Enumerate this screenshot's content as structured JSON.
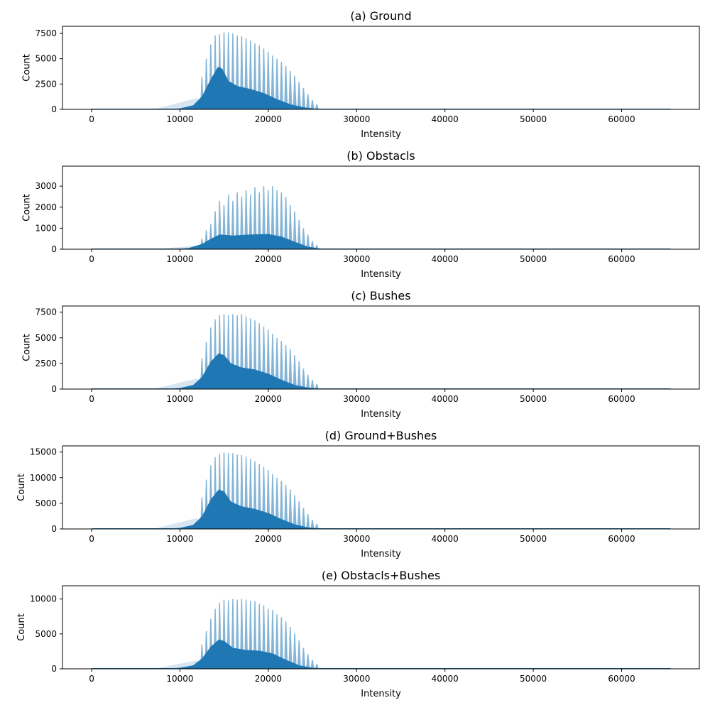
{
  "chart_data": [
    {
      "type": "bar",
      "title": "(a) Ground",
      "xlabel": "Intensity",
      "ylabel": "Count",
      "xlim": [
        -3300,
        68800
      ],
      "ylim": [
        0,
        8200
      ],
      "xticks": [
        0,
        10000,
        20000,
        30000,
        40000,
        50000,
        60000
      ],
      "xtick_labels": [
        "0",
        "10000",
        "20000",
        "30000",
        "40000",
        "50000",
        "60000"
      ],
      "yticks": [
        0,
        2500,
        5000,
        7500
      ],
      "ytick_labels": [
        "0",
        "2500",
        "5000",
        "7500"
      ],
      "color": "#1f77b4",
      "spike_peaks": [
        {
          "x": 12500,
          "y": 3200
        },
        {
          "x": 13000,
          "y": 5000
        },
        {
          "x": 13500,
          "y": 6400
        },
        {
          "x": 14000,
          "y": 7300
        },
        {
          "x": 14500,
          "y": 7400
        },
        {
          "x": 15000,
          "y": 7600
        },
        {
          "x": 15500,
          "y": 7600
        },
        {
          "x": 16000,
          "y": 7500
        },
        {
          "x": 16500,
          "y": 7300
        },
        {
          "x": 17000,
          "y": 7200
        },
        {
          "x": 17500,
          "y": 7000
        },
        {
          "x": 18000,
          "y": 6800
        },
        {
          "x": 18500,
          "y": 6500
        },
        {
          "x": 19000,
          "y": 6300
        },
        {
          "x": 19500,
          "y": 6000
        },
        {
          "x": 20000,
          "y": 5700
        },
        {
          "x": 20500,
          "y": 5300
        },
        {
          "x": 21000,
          "y": 5000
        },
        {
          "x": 21500,
          "y": 4700
        },
        {
          "x": 22000,
          "y": 4300
        },
        {
          "x": 22500,
          "y": 3800
        },
        {
          "x": 23000,
          "y": 3300
        },
        {
          "x": 23500,
          "y": 2700
        },
        {
          "x": 24000,
          "y": 2100
        },
        {
          "x": 24500,
          "y": 1500
        },
        {
          "x": 25000,
          "y": 900
        },
        {
          "x": 25500,
          "y": 500
        }
      ],
      "envelope": [
        {
          "x": 8000,
          "y": 0
        },
        {
          "x": 10000,
          "y": 100
        },
        {
          "x": 11500,
          "y": 400
        },
        {
          "x": 12500,
          "y": 1300
        },
        {
          "x": 13500,
          "y": 3000
        },
        {
          "x": 14300,
          "y": 4200
        },
        {
          "x": 14800,
          "y": 4000
        },
        {
          "x": 15500,
          "y": 2800
        },
        {
          "x": 16500,
          "y": 2300
        },
        {
          "x": 18000,
          "y": 2000
        },
        {
          "x": 19500,
          "y": 1600
        },
        {
          "x": 21000,
          "y": 1000
        },
        {
          "x": 22500,
          "y": 500
        },
        {
          "x": 24000,
          "y": 200
        },
        {
          "x": 25500,
          "y": 50
        },
        {
          "x": 27000,
          "y": 0
        }
      ]
    },
    {
      "type": "bar",
      "title": "(b) Obstacls",
      "xlabel": "Intensity",
      "ylabel": "Count",
      "xlim": [
        -3300,
        68800
      ],
      "ylim": [
        0,
        3950
      ],
      "xticks": [
        0,
        10000,
        20000,
        30000,
        40000,
        50000,
        60000
      ],
      "xtick_labels": [
        "0",
        "10000",
        "20000",
        "30000",
        "40000",
        "50000",
        "60000"
      ],
      "yticks": [
        0,
        1000,
        2000,
        3000
      ],
      "ytick_labels": [
        "0",
        "1000",
        "2000",
        "3000"
      ],
      "color": "#1f77b4",
      "spike_peaks": [
        {
          "x": 12500,
          "y": 500
        },
        {
          "x": 13000,
          "y": 900
        },
        {
          "x": 13500,
          "y": 1200
        },
        {
          "x": 14000,
          "y": 1800
        },
        {
          "x": 14500,
          "y": 2300
        },
        {
          "x": 15000,
          "y": 2100
        },
        {
          "x": 15500,
          "y": 2600
        },
        {
          "x": 16000,
          "y": 2300
        },
        {
          "x": 16500,
          "y": 2700
        },
        {
          "x": 17000,
          "y": 2500
        },
        {
          "x": 17500,
          "y": 2800
        },
        {
          "x": 18000,
          "y": 2600
        },
        {
          "x": 18500,
          "y": 2950
        },
        {
          "x": 19000,
          "y": 2700
        },
        {
          "x": 19500,
          "y": 3000
        },
        {
          "x": 20000,
          "y": 2800
        },
        {
          "x": 20500,
          "y": 3000
        },
        {
          "x": 21000,
          "y": 2800
        },
        {
          "x": 21500,
          "y": 2700
        },
        {
          "x": 22000,
          "y": 2500
        },
        {
          "x": 22500,
          "y": 2100
        },
        {
          "x": 23000,
          "y": 1800
        },
        {
          "x": 23500,
          "y": 1400
        },
        {
          "x": 24000,
          "y": 1000
        },
        {
          "x": 24500,
          "y": 700
        },
        {
          "x": 25000,
          "y": 400
        },
        {
          "x": 25500,
          "y": 200
        }
      ],
      "envelope": [
        {
          "x": 9000,
          "y": 0
        },
        {
          "x": 11000,
          "y": 60
        },
        {
          "x": 12500,
          "y": 250
        },
        {
          "x": 13500,
          "y": 500
        },
        {
          "x": 14500,
          "y": 700
        },
        {
          "x": 16000,
          "y": 650
        },
        {
          "x": 18000,
          "y": 700
        },
        {
          "x": 20000,
          "y": 720
        },
        {
          "x": 21500,
          "y": 600
        },
        {
          "x": 23000,
          "y": 350
        },
        {
          "x": 24500,
          "y": 120
        },
        {
          "x": 26500,
          "y": 0
        }
      ]
    },
    {
      "type": "bar",
      "title": "(c) Bushes",
      "xlabel": "Intensity",
      "ylabel": "Count",
      "xlim": [
        -3300,
        68800
      ],
      "ylim": [
        0,
        8100
      ],
      "xticks": [
        0,
        10000,
        20000,
        30000,
        40000,
        50000,
        60000
      ],
      "xtick_labels": [
        "0",
        "10000",
        "20000",
        "30000",
        "40000",
        "50000",
        "60000"
      ],
      "yticks": [
        0,
        2500,
        5000,
        7500
      ],
      "ytick_labels": [
        "0",
        "2500",
        "5000",
        "7500"
      ],
      "color": "#1f77b4",
      "spike_peaks": [
        {
          "x": 12500,
          "y": 3000
        },
        {
          "x": 13000,
          "y": 4600
        },
        {
          "x": 13500,
          "y": 6000
        },
        {
          "x": 14000,
          "y": 6800
        },
        {
          "x": 14500,
          "y": 7200
        },
        {
          "x": 15000,
          "y": 7300
        },
        {
          "x": 15500,
          "y": 7200
        },
        {
          "x": 16000,
          "y": 7300
        },
        {
          "x": 16500,
          "y": 7200
        },
        {
          "x": 17000,
          "y": 7300
        },
        {
          "x": 17500,
          "y": 7100
        },
        {
          "x": 18000,
          "y": 6900
        },
        {
          "x": 18500,
          "y": 6700
        },
        {
          "x": 19000,
          "y": 6400
        },
        {
          "x": 19500,
          "y": 6100
        },
        {
          "x": 20000,
          "y": 5800
        },
        {
          "x": 20500,
          "y": 5400
        },
        {
          "x": 21000,
          "y": 5000
        },
        {
          "x": 21500,
          "y": 4700
        },
        {
          "x": 22000,
          "y": 4300
        },
        {
          "x": 22500,
          "y": 3900
        },
        {
          "x": 23000,
          "y": 3300
        },
        {
          "x": 23500,
          "y": 2700
        },
        {
          "x": 24000,
          "y": 2000
        },
        {
          "x": 24500,
          "y": 1400
        },
        {
          "x": 25000,
          "y": 900
        },
        {
          "x": 25500,
          "y": 500
        }
      ],
      "envelope": [
        {
          "x": 8000,
          "y": 0
        },
        {
          "x": 10000,
          "y": 100
        },
        {
          "x": 11500,
          "y": 400
        },
        {
          "x": 12500,
          "y": 1200
        },
        {
          "x": 13500,
          "y": 2700
        },
        {
          "x": 14400,
          "y": 3500
        },
        {
          "x": 15000,
          "y": 3300
        },
        {
          "x": 15800,
          "y": 2500
        },
        {
          "x": 17000,
          "y": 2100
        },
        {
          "x": 18500,
          "y": 1900
        },
        {
          "x": 20000,
          "y": 1500
        },
        {
          "x": 21500,
          "y": 900
        },
        {
          "x": 23000,
          "y": 400
        },
        {
          "x": 24500,
          "y": 150
        },
        {
          "x": 26500,
          "y": 0
        }
      ]
    },
    {
      "type": "bar",
      "title": "(d) Ground+Bushes",
      "xlabel": "Intensity",
      "ylabel": "Count",
      "xlim": [
        -3300,
        68800
      ],
      "ylim": [
        0,
        16200
      ],
      "xticks": [
        0,
        10000,
        20000,
        30000,
        40000,
        50000,
        60000
      ],
      "xtick_labels": [
        "0",
        "10000",
        "20000",
        "30000",
        "40000",
        "50000",
        "60000"
      ],
      "yticks": [
        0,
        5000,
        10000,
        15000
      ],
      "ytick_labels": [
        "0",
        "5000",
        "10000",
        "15000"
      ],
      "color": "#1f77b4",
      "spike_peaks": [
        {
          "x": 12500,
          "y": 6200
        },
        {
          "x": 13000,
          "y": 9600
        },
        {
          "x": 13500,
          "y": 12400
        },
        {
          "x": 14000,
          "y": 14000
        },
        {
          "x": 14500,
          "y": 14600
        },
        {
          "x": 15000,
          "y": 14900
        },
        {
          "x": 15500,
          "y": 14800
        },
        {
          "x": 16000,
          "y": 14800
        },
        {
          "x": 16500,
          "y": 14500
        },
        {
          "x": 17000,
          "y": 14400
        },
        {
          "x": 17500,
          "y": 14100
        },
        {
          "x": 18000,
          "y": 13700
        },
        {
          "x": 18500,
          "y": 13200
        },
        {
          "x": 19000,
          "y": 12700
        },
        {
          "x": 19500,
          "y": 12100
        },
        {
          "x": 20000,
          "y": 11500
        },
        {
          "x": 20500,
          "y": 10700
        },
        {
          "x": 21000,
          "y": 10000
        },
        {
          "x": 21500,
          "y": 9400
        },
        {
          "x": 22000,
          "y": 8600
        },
        {
          "x": 22500,
          "y": 7700
        },
        {
          "x": 23000,
          "y": 6600
        },
        {
          "x": 23500,
          "y": 5400
        },
        {
          "x": 24000,
          "y": 4100
        },
        {
          "x": 24500,
          "y": 2900
        },
        {
          "x": 25000,
          "y": 1800
        },
        {
          "x": 25500,
          "y": 1000
        }
      ],
      "envelope": [
        {
          "x": 8000,
          "y": 0
        },
        {
          "x": 10000,
          "y": 200
        },
        {
          "x": 11500,
          "y": 800
        },
        {
          "x": 12500,
          "y": 2500
        },
        {
          "x": 13500,
          "y": 5800
        },
        {
          "x": 14400,
          "y": 7700
        },
        {
          "x": 15000,
          "y": 7300
        },
        {
          "x": 15800,
          "y": 5300
        },
        {
          "x": 17000,
          "y": 4400
        },
        {
          "x": 18500,
          "y": 3900
        },
        {
          "x": 20000,
          "y": 3100
        },
        {
          "x": 21500,
          "y": 1900
        },
        {
          "x": 23000,
          "y": 900
        },
        {
          "x": 24500,
          "y": 300
        },
        {
          "x": 26500,
          "y": 0
        }
      ]
    },
    {
      "type": "bar",
      "title": "(e) Obstacls+Bushes",
      "xlabel": "Intensity",
      "ylabel": "Count",
      "xlim": [
        -3300,
        68800
      ],
      "ylim": [
        0,
        11900
      ],
      "xticks": [
        0,
        10000,
        20000,
        30000,
        40000,
        50000,
        60000
      ],
      "xtick_labels": [
        "0",
        "10000",
        "20000",
        "30000",
        "40000",
        "50000",
        "60000"
      ],
      "yticks": [
        0,
        5000,
        10000
      ],
      "ytick_labels": [
        "0",
        "5000",
        "10000"
      ],
      "color": "#1f77b4",
      "spike_peaks": [
        {
          "x": 12500,
          "y": 3500
        },
        {
          "x": 13000,
          "y": 5400
        },
        {
          "x": 13500,
          "y": 7200
        },
        {
          "x": 14000,
          "y": 8600
        },
        {
          "x": 14500,
          "y": 9500
        },
        {
          "x": 15000,
          "y": 9900
        },
        {
          "x": 15500,
          "y": 9800
        },
        {
          "x": 16000,
          "y": 10000
        },
        {
          "x": 16500,
          "y": 9900
        },
        {
          "x": 17000,
          "y": 10000
        },
        {
          "x": 17500,
          "y": 9900
        },
        {
          "x": 18000,
          "y": 9700
        },
        {
          "x": 18500,
          "y": 9700
        },
        {
          "x": 19000,
          "y": 9300
        },
        {
          "x": 19500,
          "y": 9100
        },
        {
          "x": 20000,
          "y": 8600
        },
        {
          "x": 20500,
          "y": 8400
        },
        {
          "x": 21000,
          "y": 7800
        },
        {
          "x": 21500,
          "y": 7400
        },
        {
          "x": 22000,
          "y": 6800
        },
        {
          "x": 22500,
          "y": 6000
        },
        {
          "x": 23000,
          "y": 5100
        },
        {
          "x": 23500,
          "y": 4100
        },
        {
          "x": 24000,
          "y": 3000
        },
        {
          "x": 24500,
          "y": 2100
        },
        {
          "x": 25000,
          "y": 1300
        },
        {
          "x": 25500,
          "y": 700
        }
      ],
      "envelope": [
        {
          "x": 8000,
          "y": 0
        },
        {
          "x": 10000,
          "y": 150
        },
        {
          "x": 11500,
          "y": 500
        },
        {
          "x": 12500,
          "y": 1500
        },
        {
          "x": 13500,
          "y": 3200
        },
        {
          "x": 14400,
          "y": 4200
        },
        {
          "x": 15000,
          "y": 4000
        },
        {
          "x": 16000,
          "y": 3000
        },
        {
          "x": 17500,
          "y": 2700
        },
        {
          "x": 19000,
          "y": 2600
        },
        {
          "x": 20500,
          "y": 2200
        },
        {
          "x": 22000,
          "y": 1300
        },
        {
          "x": 23500,
          "y": 500
        },
        {
          "x": 25000,
          "y": 150
        },
        {
          "x": 27000,
          "y": 0
        }
      ]
    }
  ]
}
